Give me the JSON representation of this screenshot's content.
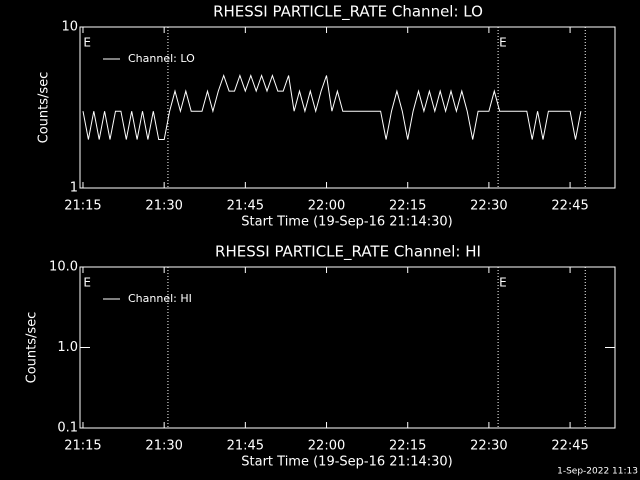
{
  "chart_data": [
    {
      "type": "line",
      "title": "RHESSI PARTICLE_RATE Channel: LO",
      "xlabel": "Start Time (19-Sep-16 21:14:30)",
      "ylabel": "Counts/sec",
      "log_y": true,
      "ylim": [
        1,
        10
      ],
      "yticks": [
        1,
        10
      ],
      "xlim": [
        1274.45,
        1373.3
      ],
      "xticks": [
        {
          "value": 1275,
          "label": "21:15"
        },
        {
          "value": 1290,
          "label": "21:30"
        },
        {
          "value": 1305,
          "label": "21:45"
        },
        {
          "value": 1320,
          "label": "22:00"
        },
        {
          "value": 1335,
          "label": "22:15"
        },
        {
          "value": 1350,
          "label": "22:30"
        },
        {
          "value": 1365,
          "label": "22:45"
        }
      ],
      "vlines": [
        1290.7,
        1351.7,
        1367.8
      ],
      "annotations": [
        {
          "x": 1274.9,
          "text": "E"
        },
        {
          "x": 1351.7,
          "text": "E"
        }
      ],
      "x": [
        1275,
        1276,
        1277,
        1278,
        1279,
        1280,
        1281,
        1282,
        1283,
        1284,
        1285,
        1286,
        1287,
        1288,
        1289,
        1290,
        1291,
        1292,
        1293,
        1294,
        1295,
        1296,
        1297,
        1298,
        1299,
        1300,
        1301,
        1302,
        1303,
        1304,
        1305,
        1306,
        1307,
        1308,
        1309,
        1310,
        1311,
        1312,
        1313,
        1314,
        1315,
        1316,
        1317,
        1318,
        1319,
        1320,
        1321,
        1322,
        1323,
        1324,
        1325,
        1326,
        1327,
        1328,
        1329,
        1330,
        1331,
        1332,
        1333,
        1334,
        1335,
        1336,
        1337,
        1338,
        1339,
        1340,
        1341,
        1342,
        1343,
        1344,
        1345,
        1346,
        1347,
        1348,
        1349,
        1350,
        1351,
        1352,
        1353,
        1354,
        1355,
        1356,
        1357,
        1358,
        1359,
        1360,
        1361,
        1362,
        1363,
        1364,
        1365,
        1366,
        1367
      ],
      "series": [
        {
          "name": "Channel: LO",
          "color": "#ffffff",
          "values": [
            3,
            2,
            3,
            2,
            3,
            2,
            3,
            3,
            2,
            3,
            2,
            3,
            2,
            3,
            2,
            2,
            3,
            4,
            3,
            4,
            3,
            3,
            3,
            4,
            3,
            4,
            5,
            4,
            4,
            5,
            4,
            5,
            4,
            5,
            4,
            5,
            4,
            4,
            5,
            3,
            4,
            3,
            4,
            3,
            4,
            5,
            3,
            4,
            3,
            3,
            3,
            3,
            3,
            3,
            3,
            3,
            2,
            3,
            4,
            3,
            2,
            3,
            4,
            3,
            4,
            3,
            4,
            3,
            4,
            3,
            4,
            3,
            2,
            3,
            3,
            3,
            4,
            3,
            3,
            3,
            3,
            3,
            3,
            2,
            3,
            2,
            3,
            3,
            3,
            3,
            3,
            2,
            3
          ]
        }
      ]
    },
    {
      "type": "line",
      "title": "RHESSI PARTICLE_RATE Channel: HI",
      "xlabel": "Start Time (19-Sep-16 21:14:30)",
      "ylabel": "Counts/sec",
      "log_y": true,
      "ylim": [
        0.1,
        10
      ],
      "yticks": [
        {
          "value": 0.1,
          "label": "0.1"
        },
        {
          "value": 1,
          "label": "1.0"
        },
        {
          "value": 10,
          "label": "10.0"
        }
      ],
      "xlim": [
        1274.45,
        1373.3
      ],
      "xticks": [
        {
          "value": 1275,
          "label": "21:15"
        },
        {
          "value": 1290,
          "label": "21:30"
        },
        {
          "value": 1305,
          "label": "21:45"
        },
        {
          "value": 1320,
          "label": "22:00"
        },
        {
          "value": 1335,
          "label": "22:15"
        },
        {
          "value": 1350,
          "label": "22:30"
        },
        {
          "value": 1365,
          "label": "22:45"
        }
      ],
      "vlines": [
        1290.7,
        1351.7,
        1367.8
      ],
      "annotations": [
        {
          "x": 1274.9,
          "text": "E"
        },
        {
          "x": 1351.7,
          "text": "E"
        }
      ],
      "x": [],
      "series": [
        {
          "name": "Channel: HI",
          "color": "#ffffff",
          "values": []
        }
      ]
    }
  ],
  "footer": "1-Sep-2022 11:13"
}
